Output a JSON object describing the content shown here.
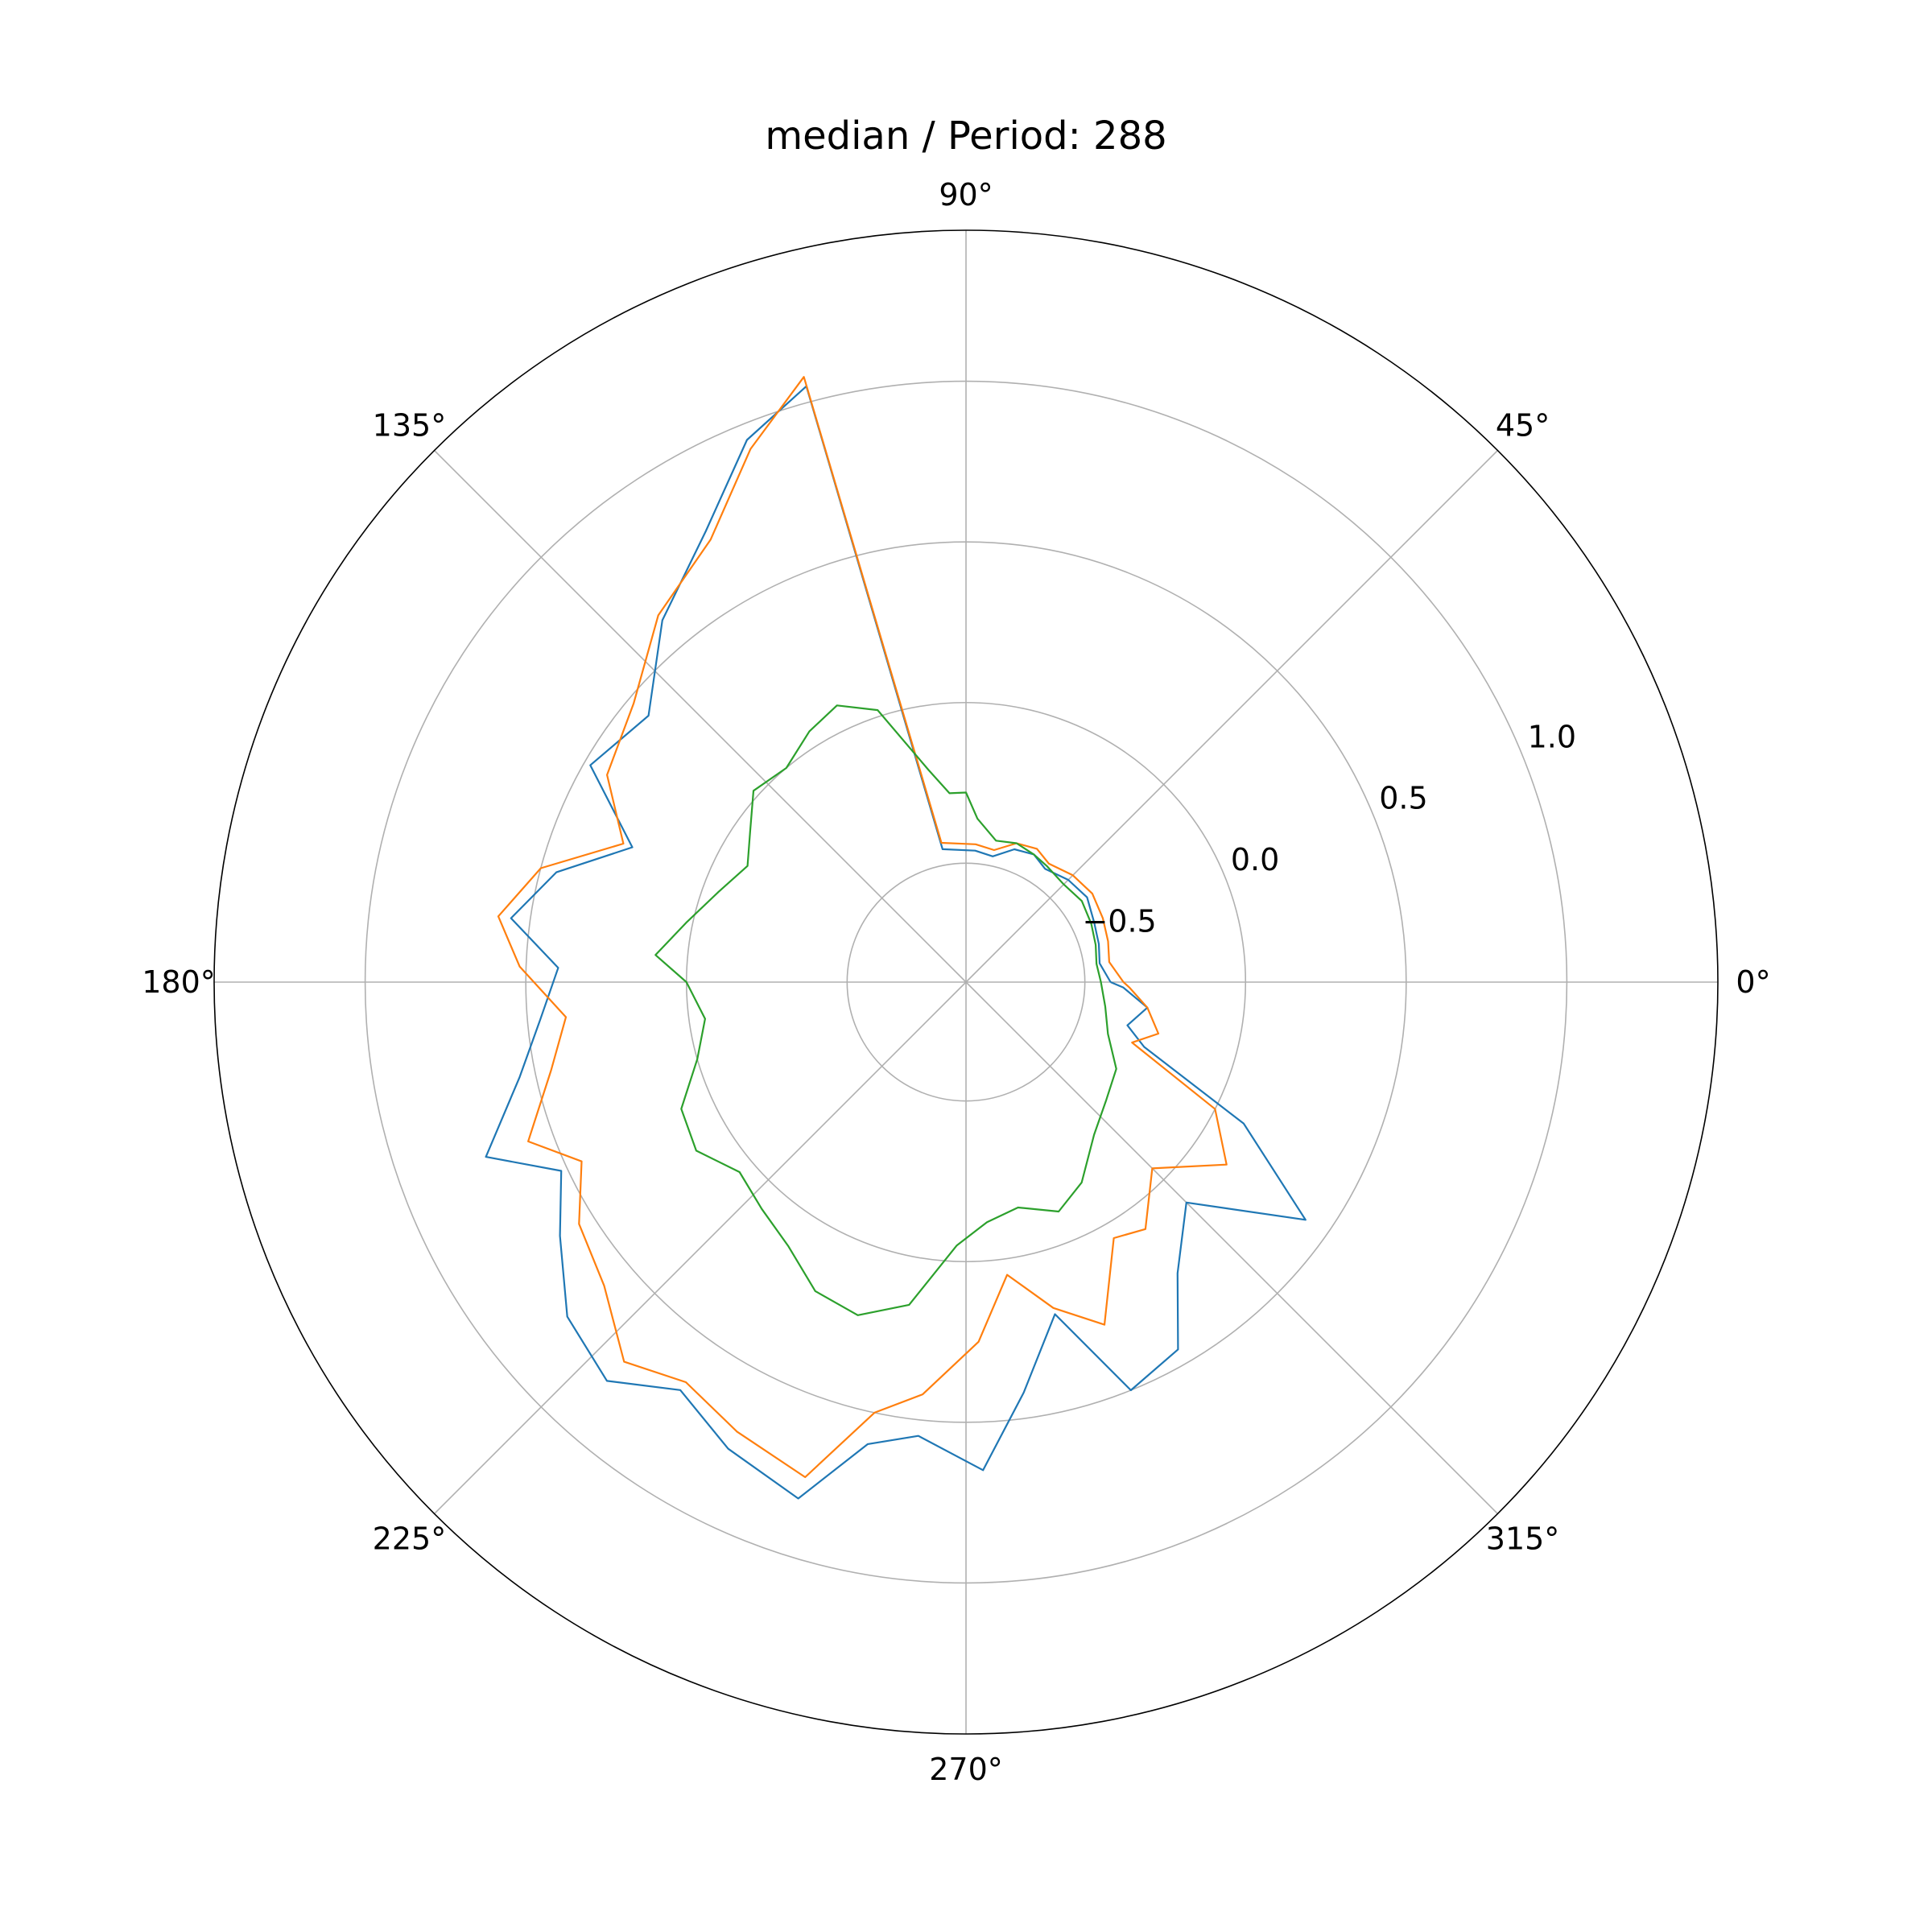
{
  "chart_data": {
    "type": "line",
    "projection": "polar",
    "title": "median / Period: 288",
    "angle_unit": "degrees",
    "angle_ticks": [
      "0°",
      "45°",
      "90°",
      "135°",
      "180°",
      "225°",
      "270°",
      "315°"
    ],
    "radial_ticks": [
      "−0.5",
      "0.0",
      "0.5",
      "1.0"
    ],
    "radial_tick_values": [
      -0.5,
      0.0,
      0.5,
      1.0
    ],
    "rlim": [
      -0.87,
      1.47
    ],
    "grid": true,
    "series": [
      {
        "color": "#1f77b4",
        "points": [
          {
            "theta": 0,
            "r": -0.42
          },
          {
            "theta": 8,
            "r": -0.45
          },
          {
            "theta": 16,
            "r": -0.44
          },
          {
            "theta": 25,
            "r": -0.43
          },
          {
            "theta": 35,
            "r": -0.41
          },
          {
            "theta": 45,
            "r": -0.42
          },
          {
            "theta": 55,
            "r": -0.44
          },
          {
            "theta": 62,
            "r": -0.42
          },
          {
            "theta": 70,
            "r": -0.43
          },
          {
            "theta": 78,
            "r": -0.47
          },
          {
            "theta": 86,
            "r": -0.46
          },
          {
            "theta": 100,
            "r": -0.45
          },
          {
            "theta": 105,
            "r": 1.05
          },
          {
            "theta": 112,
            "r": 0.95
          },
          {
            "theta": 120,
            "r": 0.75
          },
          {
            "theta": 130,
            "r": 0.6
          },
          {
            "theta": 140,
            "r": 0.42
          },
          {
            "theta": 150,
            "r": 0.48
          },
          {
            "theta": 158,
            "r": 0.25
          },
          {
            "theta": 165,
            "r": 0.45
          },
          {
            "theta": 172,
            "r": 0.56
          },
          {
            "theta": 178,
            "r": 0.4
          },
          {
            "theta": 185,
            "r": 0.46
          },
          {
            "theta": 192,
            "r": 0.55
          },
          {
            "theta": 200,
            "r": 0.72
          },
          {
            "theta": 205,
            "r": 0.52
          },
          {
            "theta": 212,
            "r": 0.62
          },
          {
            "theta": 220,
            "r": 0.75
          },
          {
            "theta": 228,
            "r": 0.8
          },
          {
            "theta": 235,
            "r": 0.68
          },
          {
            "theta": 243,
            "r": 0.76
          },
          {
            "theta": 252,
            "r": 0.82
          },
          {
            "theta": 258,
            "r": 0.6
          },
          {
            "theta": 264,
            "r": 0.55
          },
          {
            "theta": 272,
            "r": 0.65
          },
          {
            "theta": 278,
            "r": 0.42
          },
          {
            "theta": 285,
            "r": 0.2
          },
          {
            "theta": 292,
            "r": 0.5
          },
          {
            "theta": 300,
            "r": 0.45
          },
          {
            "theta": 306,
            "r": 0.25
          },
          {
            "theta": 315,
            "r": 0.1
          },
          {
            "theta": 325,
            "r": 0.42
          },
          {
            "theta": 333,
            "r": 0.1
          },
          {
            "theta": 340,
            "r": -0.28
          },
          {
            "theta": 345,
            "r": -0.35
          },
          {
            "theta": 352,
            "r": -0.3
          },
          {
            "theta": 358,
            "r": -0.38
          },
          {
            "theta": 360,
            "r": -0.42
          }
        ]
      },
      {
        "color": "#ff7f0e",
        "points": [
          {
            "theta": 0,
            "r": -0.38
          },
          {
            "theta": 8,
            "r": -0.42
          },
          {
            "theta": 16,
            "r": -0.41
          },
          {
            "theta": 25,
            "r": -0.4
          },
          {
            "theta": 35,
            "r": -0.39
          },
          {
            "theta": 45,
            "r": -0.4
          },
          {
            "theta": 55,
            "r": -0.42
          },
          {
            "theta": 62,
            "r": -0.4
          },
          {
            "theta": 70,
            "r": -0.41
          },
          {
            "theta": 78,
            "r": -0.45
          },
          {
            "theta": 86,
            "r": -0.44
          },
          {
            "theta": 100,
            "r": -0.43
          },
          {
            "theta": 105,
            "r": 1.08
          },
          {
            "theta": 112,
            "r": 0.92
          },
          {
            "theta": 120,
            "r": 0.72
          },
          {
            "theta": 130,
            "r": 0.62
          },
          {
            "theta": 140,
            "r": 0.48
          },
          {
            "theta": 150,
            "r": 0.42
          },
          {
            "theta": 158,
            "r": 0.28
          },
          {
            "theta": 165,
            "r": 0.5
          },
          {
            "theta": 172,
            "r": 0.6
          },
          {
            "theta": 178,
            "r": 0.52
          },
          {
            "theta": 185,
            "r": 0.38
          },
          {
            "theta": 192,
            "r": 0.45
          },
          {
            "theta": 200,
            "r": 0.58
          },
          {
            "theta": 205,
            "r": 0.45
          },
          {
            "theta": 212,
            "r": 0.55
          },
          {
            "theta": 220,
            "r": 0.6
          },
          {
            "theta": 228,
            "r": 0.72
          },
          {
            "theta": 235,
            "r": 0.65
          },
          {
            "theta": 243,
            "r": 0.7
          },
          {
            "theta": 252,
            "r": 0.75
          },
          {
            "theta": 258,
            "r": 0.5
          },
          {
            "theta": 264,
            "r": 0.42
          },
          {
            "theta": 272,
            "r": 0.25
          },
          {
            "theta": 278,
            "r": 0.05
          },
          {
            "theta": 285,
            "r": 0.18
          },
          {
            "theta": 292,
            "r": 0.28
          },
          {
            "theta": 300,
            "r": 0.05
          },
          {
            "theta": 306,
            "r": 0.08
          },
          {
            "theta": 315,
            "r": -0.05
          },
          {
            "theta": 325,
            "r": 0.12
          },
          {
            "theta": 333,
            "r": 0.0
          },
          {
            "theta": 340,
            "r": -0.32
          },
          {
            "theta": 345,
            "r": -0.25
          },
          {
            "theta": 352,
            "r": -0.3
          },
          {
            "theta": 358,
            "r": -0.36
          },
          {
            "theta": 360,
            "r": -0.38
          }
        ]
      },
      {
        "color": "#2ca02c",
        "points": [
          {
            "theta": 0,
            "r": -0.45
          },
          {
            "theta": 8,
            "r": -0.46
          },
          {
            "theta": 16,
            "r": -0.45
          },
          {
            "theta": 25,
            "r": -0.44
          },
          {
            "theta": 35,
            "r": -0.43
          },
          {
            "theta": 45,
            "r": -0.44
          },
          {
            "theta": 55,
            "r": -0.43
          },
          {
            "theta": 62,
            "r": -0.42
          },
          {
            "theta": 70,
            "r": -0.41
          },
          {
            "theta": 78,
            "r": -0.42
          },
          {
            "theta": 86,
            "r": -0.36
          },
          {
            "theta": 90,
            "r": -0.28
          },
          {
            "theta": 95,
            "r": -0.28
          },
          {
            "theta": 100,
            "r": -0.2
          },
          {
            "theta": 108,
            "r": 0.02
          },
          {
            "theta": 115,
            "r": 0.08
          },
          {
            "theta": 122,
            "r": 0.05
          },
          {
            "theta": 130,
            "r": 0.0
          },
          {
            "theta": 138,
            "r": 0.02
          },
          {
            "theta": 145,
            "r": -0.05
          },
          {
            "theta": 152,
            "r": -0.1
          },
          {
            "theta": 160,
            "r": -0.05
          },
          {
            "theta": 168,
            "r": 0.02
          },
          {
            "theta": 175,
            "r": 0.1
          },
          {
            "theta": 180,
            "r": 0.0
          },
          {
            "theta": 188,
            "r": -0.05
          },
          {
            "theta": 196,
            "r": 0.0
          },
          {
            "theta": 204,
            "r": 0.1
          },
          {
            "theta": 212,
            "r": 0.12
          },
          {
            "theta": 220,
            "r": 0.05
          },
          {
            "theta": 228,
            "r": 0.08
          },
          {
            "theta": 236,
            "r": 0.12
          },
          {
            "theta": 244,
            "r": 0.2
          },
          {
            "theta": 252,
            "r": 0.22
          },
          {
            "theta": 260,
            "r": 0.15
          },
          {
            "theta": 268,
            "r": -0.05
          },
          {
            "theta": 275,
            "r": -0.12
          },
          {
            "theta": 283,
            "r": -0.15
          },
          {
            "theta": 292,
            "r": -0.1
          },
          {
            "theta": 300,
            "r": -0.15
          },
          {
            "theta": 310,
            "r": -0.25
          },
          {
            "theta": 320,
            "r": -0.3
          },
          {
            "theta": 330,
            "r": -0.33
          },
          {
            "theta": 340,
            "r": -0.4
          },
          {
            "theta": 350,
            "r": -0.43
          },
          {
            "theta": 360,
            "r": -0.45
          }
        ]
      }
    ]
  }
}
